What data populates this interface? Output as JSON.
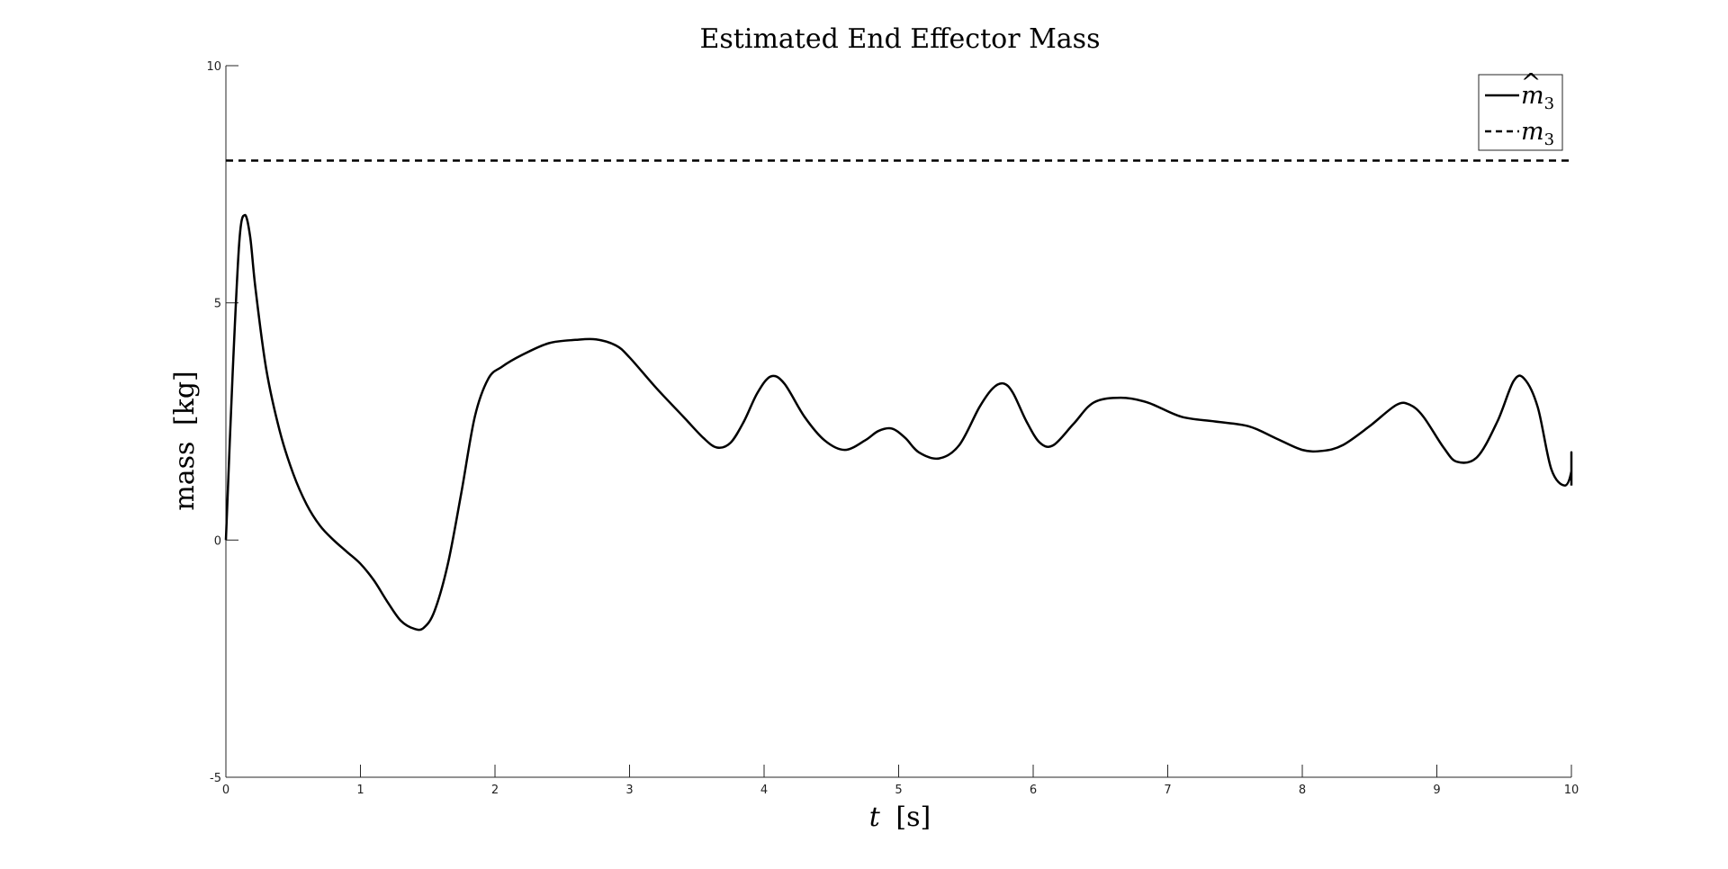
{
  "chart_data": {
    "type": "line",
    "title": "Estimated End Effector Mass",
    "xlabel": "t [s]",
    "xlabel_parts": {
      "var": "t",
      "unit": "[s]"
    },
    "ylabel": "mass [kg]",
    "ylabel_parts": {
      "word": "mass",
      "unit": "[kg]"
    },
    "xlim": [
      0,
      10
    ],
    "ylim": [
      -5,
      10
    ],
    "xticks": [
      0,
      1,
      2,
      3,
      4,
      5,
      6,
      7,
      8,
      9,
      10
    ],
    "yticks": [
      -5,
      0,
      5,
      10
    ],
    "xtick_labels": [
      "0",
      "1",
      "2",
      "3",
      "4",
      "5",
      "6",
      "7",
      "8",
      "9",
      "10"
    ],
    "ytick_labels": [
      "-5",
      "0",
      "5",
      "10"
    ],
    "grid": false,
    "legend_position": "top-right",
    "series": [
      {
        "name": "m̂3",
        "style": "solid",
        "color": "#000000",
        "x": [
          0,
          0.05,
          0.1,
          0.14,
          0.18,
          0.22,
          0.3,
          0.4,
          0.5,
          0.6,
          0.7,
          0.8,
          0.9,
          1.0,
          1.1,
          1.2,
          1.3,
          1.4,
          1.47,
          1.55,
          1.65,
          1.75,
          1.85,
          1.95,
          2.05,
          2.2,
          2.4,
          2.6,
          2.75,
          2.9,
          3.0,
          3.2,
          3.4,
          3.55,
          3.65,
          3.75,
          3.85,
          3.95,
          4.05,
          4.15,
          4.3,
          4.45,
          4.6,
          4.75,
          4.85,
          4.95,
          5.05,
          5.15,
          5.3,
          5.45,
          5.6,
          5.7,
          5.78,
          5.85,
          5.95,
          6.05,
          6.15,
          6.3,
          6.45,
          6.65,
          6.85,
          7.1,
          7.35,
          7.6,
          7.8,
          8.0,
          8.15,
          8.3,
          8.5,
          8.7,
          8.8,
          8.9,
          9.05,
          9.15,
          9.3,
          9.45,
          9.57,
          9.65,
          9.75,
          9.85,
          9.95,
          10.0,
          10.0
        ],
        "y": [
          0,
          3.5,
          6.3,
          6.85,
          6.4,
          5.3,
          3.6,
          2.3,
          1.4,
          0.75,
          0.3,
          0.0,
          -0.25,
          -0.5,
          -0.85,
          -1.3,
          -1.7,
          -1.87,
          -1.85,
          -1.5,
          -0.5,
          1.0,
          2.6,
          3.4,
          3.65,
          3.9,
          4.15,
          4.22,
          4.23,
          4.1,
          3.85,
          3.2,
          2.6,
          2.15,
          1.95,
          2.05,
          2.5,
          3.1,
          3.45,
          3.3,
          2.6,
          2.1,
          1.9,
          2.1,
          2.3,
          2.35,
          2.15,
          1.85,
          1.72,
          2.0,
          2.8,
          3.2,
          3.3,
          3.1,
          2.5,
          2.05,
          2.0,
          2.45,
          2.9,
          3.0,
          2.9,
          2.6,
          2.5,
          2.4,
          2.15,
          1.9,
          1.88,
          2.0,
          2.4,
          2.85,
          2.85,
          2.6,
          1.95,
          1.65,
          1.75,
          2.5,
          3.35,
          3.4,
          2.8,
          1.5,
          1.15,
          1.45,
          1.85
        ],
        "end_drop": 1.15
      },
      {
        "name": "m3",
        "style": "dashed",
        "color": "#000000",
        "x": [
          0,
          10
        ],
        "y": [
          8,
          8
        ]
      }
    ],
    "legend": [
      {
        "label_base": "m",
        "label_sub": "3",
        "hat": true,
        "style": "solid"
      },
      {
        "label_base": "m",
        "label_sub": "3",
        "hat": false,
        "style": "dashed"
      }
    ]
  }
}
